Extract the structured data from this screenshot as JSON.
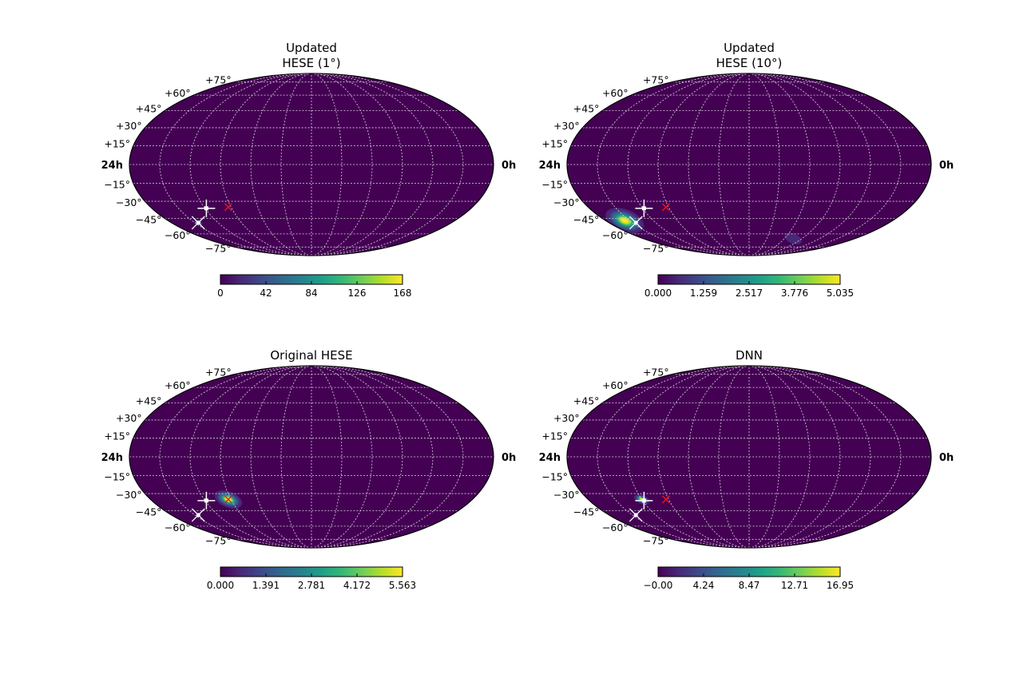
{
  "chart_data": [
    {
      "type": "heatmap",
      "projection": "mollweide",
      "title_lines": [
        "Updated",
        "HESE (1°)"
      ],
      "ra_labels": {
        "left": "24h",
        "right": "0h"
      },
      "dec_labels": [
        "+75°",
        "+60°",
        "+45°",
        "+30°",
        "+15°",
        "−15°",
        "−30°",
        "−45°",
        "−60°",
        "−75°"
      ],
      "grid": true,
      "colorbar": {
        "ticks": [
          "0",
          "42",
          "84",
          "126",
          "168"
        ],
        "min": 0,
        "max": 168,
        "colormap": "viridis"
      },
      "hotspots": [
        {
          "ra_h": 21.7,
          "dec": -49,
          "sigma_deg": 1.5,
          "amp": 1.0
        }
      ],
      "markers": [
        {
          "type": "white-plus",
          "ra_h": 19.9,
          "dec": -36
        },
        {
          "type": "red-x",
          "ra_h": 18.2,
          "dec": -35
        },
        {
          "type": "white-x",
          "ra_h": 21.7,
          "dec": -49
        }
      ]
    },
    {
      "type": "heatmap",
      "projection": "mollweide",
      "title_lines": [
        "Updated",
        "HESE (10°)"
      ],
      "ra_labels": {
        "left": "24h",
        "right": "0h"
      },
      "dec_labels": [
        "+75°",
        "+60°",
        "+45°",
        "+30°",
        "+15°",
        "−15°",
        "−30°",
        "−45°",
        "−60°",
        "−75°"
      ],
      "grid": true,
      "colorbar": {
        "ticks": [
          "0.000",
          "1.259",
          "2.517",
          "3.776",
          "5.035"
        ],
        "min": 0,
        "max": 5.035,
        "colormap": "viridis"
      },
      "hotspots": [
        {
          "ra_h": 22.4,
          "dec": -47,
          "sigma_deg": 7,
          "amp": 1.0
        },
        {
          "ra_h": 7.0,
          "dec": -65,
          "sigma_deg": 6,
          "amp": 0.15
        }
      ],
      "markers": [
        {
          "type": "white-plus",
          "ra_h": 19.9,
          "dec": -36
        },
        {
          "type": "red-x",
          "ra_h": 18.2,
          "dec": -35
        },
        {
          "type": "white-x",
          "ra_h": 21.7,
          "dec": -49
        }
      ]
    },
    {
      "type": "heatmap",
      "projection": "mollweide",
      "title_lines": [
        "Original HESE"
      ],
      "ra_labels": {
        "left": "24h",
        "right": "0h"
      },
      "dec_labels": [
        "+75°",
        "+60°",
        "+45°",
        "+30°",
        "+15°",
        "−15°",
        "−30°",
        "−45°",
        "−60°",
        "−75°"
      ],
      "grid": true,
      "colorbar": {
        "ticks": [
          "0.000",
          "1.391",
          "2.781",
          "4.172",
          "5.563"
        ],
        "min": 0,
        "max": 5.563,
        "colormap": "viridis"
      },
      "hotspots": [
        {
          "ra_h": 18.2,
          "dec": -35,
          "sigma_deg": 5,
          "amp": 1.0
        }
      ],
      "markers": [
        {
          "type": "white-plus",
          "ra_h": 19.9,
          "dec": -36
        },
        {
          "type": "red-x",
          "ra_h": 18.2,
          "dec": -35
        },
        {
          "type": "white-x",
          "ra_h": 21.7,
          "dec": -49
        }
      ]
    },
    {
      "type": "heatmap",
      "projection": "mollweide",
      "title_lines": [
        "DNN"
      ],
      "ra_labels": {
        "left": "24h",
        "right": "0h"
      },
      "dec_labels": [
        "+75°",
        "+60°",
        "+45°",
        "+30°",
        "+15°",
        "−15°",
        "−30°",
        "−45°",
        "−60°",
        "−75°"
      ],
      "grid": true,
      "colorbar": {
        "ticks": [
          "−0.00",
          "4.24",
          "8.47",
          "12.71",
          "16.95"
        ],
        "min": 0,
        "max": 16.95,
        "colormap": "viridis"
      },
      "hotspots": [
        {
          "ra_h": 20.0,
          "dec": -35,
          "sigma_deg": 2.8,
          "amp": 1.0
        }
      ],
      "markers": [
        {
          "type": "white-plus",
          "ra_h": 19.9,
          "dec": -36
        },
        {
          "type": "red-x",
          "ra_h": 18.2,
          "dec": -35
        },
        {
          "type": "white-x",
          "ra_h": 21.7,
          "dec": -49
        }
      ]
    }
  ],
  "colors": {
    "viridis": [
      "#440154",
      "#482878",
      "#3e4989",
      "#31688e",
      "#26828e",
      "#1f9e89",
      "#35b779",
      "#6ece58",
      "#b5de2b",
      "#fde725"
    ],
    "grid": "#d8d8d8",
    "outline": "#000000",
    "red_marker": "#e8191c",
    "white_marker": "#ffffff"
  }
}
